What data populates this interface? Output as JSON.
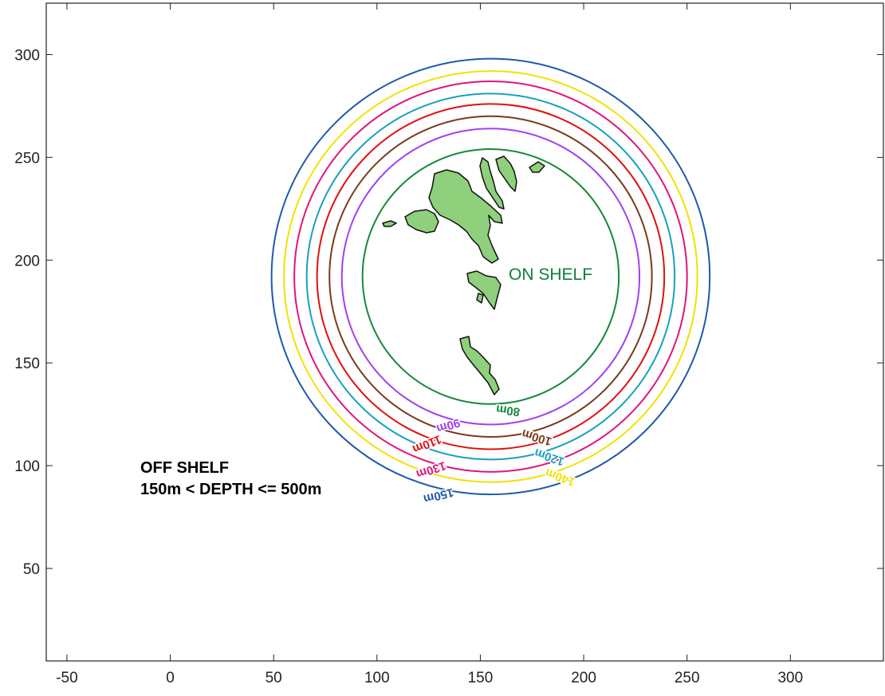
{
  "map": {
    "x_ticks": [
      "-50",
      "0",
      "50",
      "100",
      "150",
      "200",
      "250",
      "300"
    ],
    "y_ticks": [
      "50",
      "100",
      "150",
      "200",
      "250",
      "300"
    ],
    "x_tick_values": [
      -50,
      0,
      50,
      100,
      150,
      200,
      250,
      300
    ],
    "y_tick_values": [
      50,
      100,
      150,
      200,
      250,
      300
    ],
    "xlim": [
      -60,
      345
    ],
    "ylim": [
      5,
      325
    ],
    "center": [
      155,
      192
    ],
    "off_shelf": {
      "line1": "OFF SHELF",
      "line2": "150m < DEPTH <= 500m"
    },
    "on_shelf": "ON SHELF",
    "contours": [
      {
        "label": "80m",
        "radius": 62,
        "color": "#138a3a",
        "label_deg": -82
      },
      {
        "label": "90m",
        "radius": 72,
        "color": "#a040f0",
        "label_deg": -107
      },
      {
        "label": "100m",
        "radius": 78,
        "color": "#7a3a1a",
        "label_deg": -73
      },
      {
        "label": "110m",
        "radius": 84,
        "color": "#e01010",
        "label_deg": -112
      },
      {
        "label": "120m",
        "radius": 89,
        "color": "#1aa0c0",
        "label_deg": -71
      },
      {
        "label": "130m",
        "radius": 95,
        "color": "#e0157a",
        "label_deg": -108
      },
      {
        "label": "140m",
        "radius": 100,
        "color": "#f2e200",
        "label_deg": -70
      },
      {
        "label": "150m",
        "radius": 106,
        "color": "#1f5aa8",
        "label_deg": -104
      }
    ],
    "land_color": "#8fd07c"
  }
}
